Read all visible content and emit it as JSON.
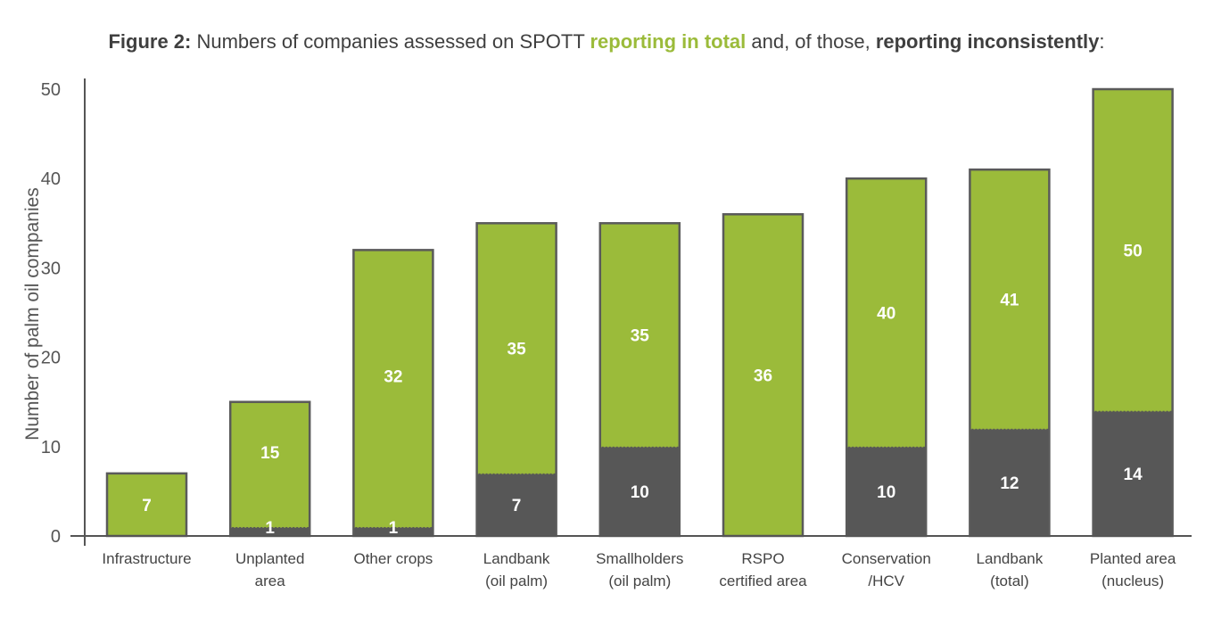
{
  "chart_data": {
    "type": "bar",
    "stacked": "overlay",
    "title": {
      "prefix": "Figure 2:",
      "text1": " Numbers of companies assessed on SPOTT ",
      "highlight_total": "reporting in total",
      "text2": " and, of those, ",
      "highlight_inconsistent": "reporting inconsistently",
      "suffix": ":"
    },
    "xlabel": "",
    "ylabel": "Number of palm oil companies",
    "ylim": [
      0,
      50
    ],
    "yticks": [
      0,
      10,
      20,
      30,
      40,
      50
    ],
    "grid": false,
    "legend": "none",
    "categories": [
      [
        "Infrastructure"
      ],
      [
        "Unplanted",
        "area"
      ],
      [
        "Other crops"
      ],
      [
        "Landbank",
        "(oil palm)"
      ],
      [
        "Smallholders",
        "(oil palm)"
      ],
      [
        "RSPO",
        "certified area"
      ],
      [
        "Conservation",
        "/HCV"
      ],
      [
        "Landbank",
        "(total)"
      ],
      [
        "Planted area",
        "(nucleus)"
      ]
    ],
    "series": [
      {
        "name": "reporting in total",
        "color": "#9bbb3a",
        "values": [
          7,
          15,
          32,
          35,
          35,
          36,
          40,
          41,
          50
        ]
      },
      {
        "name": "reporting inconsistently",
        "color": "#575757",
        "values": [
          0,
          1,
          1,
          7,
          10,
          0,
          10,
          12,
          14
        ]
      }
    ],
    "colors": {
      "total": "#9bbb3a",
      "inconsistent": "#575757",
      "outline": "#5a5a5a",
      "axis": "#555555"
    }
  }
}
